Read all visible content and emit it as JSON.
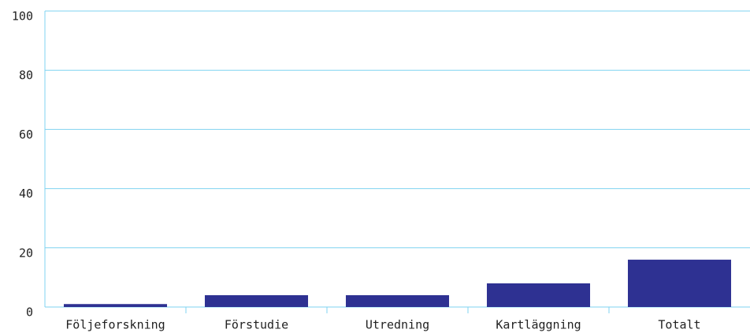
{
  "chart_data": {
    "type": "bar",
    "categories": [
      "Följeforskning",
      "Förstudie",
      "Utredning",
      "Kartläggning",
      "Totalt"
    ],
    "values": [
      1,
      4,
      4,
      8,
      16
    ],
    "color": "#2e3192",
    "ylim": [
      0,
      100
    ],
    "yticks": [
      0,
      20,
      40,
      60,
      80,
      100
    ],
    "grid": true
  }
}
